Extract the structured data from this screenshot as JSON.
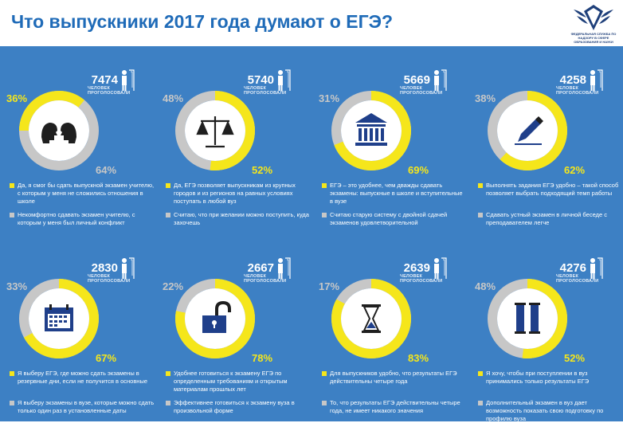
{
  "header": {
    "title": "Что выпускники 2017 года думают о ЕГЭ?",
    "logo_text": "ФЕДЕРАЛЬНАЯ СЛУЖБА ПО НАДЗОРУ В СФЕРЕ ОБРАЗОВАНИЯ И НАУКИ"
  },
  "colors": {
    "yellow": "#f5e61b",
    "grey": "#c7c7c7",
    "panel": "#3d80c4",
    "title": "#1f6bb8"
  },
  "cards": [
    {
      "count": "7474",
      "count_label_1": "ЧЕЛОВЕК",
      "count_label_2": "ПРОГОЛОСОВАЛИ",
      "yellow_pct_value": 36,
      "grey_pct_value": 64,
      "left_pct": "36%",
      "right_pct": "64%",
      "left_is_yellow": true,
      "icon": "two-heads-icon",
      "yes": "Да, я смог бы сдать выпускной экзамен учителю, с которым у меня не сложились отношения в школе",
      "no": "Некомфортно сдавать экзамен учителю, с которым у меня был личный конфликт"
    },
    {
      "count": "5740",
      "count_label_1": "ЧЕЛОВЕК",
      "count_label_2": "ПРОГОЛОСОВАЛИ",
      "yellow_pct_value": 52,
      "grey_pct_value": 48,
      "left_pct": "48%",
      "right_pct": "52%",
      "left_is_yellow": false,
      "icon": "scales-icon",
      "yes": "Да, ЕГЭ позволяет выпускникам из крупных городов и из регионов на равных условиях поступать в любой вуз",
      "no": "Считаю, что при желании можно поступить, куда захочешь"
    },
    {
      "count": "5669",
      "count_label_1": "ЧЕЛОВЕК",
      "count_label_2": "ПРОГОЛОСОВАЛИ",
      "yellow_pct_value": 69,
      "grey_pct_value": 31,
      "left_pct": "31%",
      "right_pct": "69%",
      "left_is_yellow": false,
      "icon": "university-icon",
      "yes": "ЕГЭ – это удобнее, чем дважды сдавать экзамены: выпускные в школе и вступительные в вузе",
      "no": "Считаю старую систему с двойной сдачей экзаменов удовлетворительной"
    },
    {
      "count": "4258",
      "count_label_1": "ЧЕЛОВЕК",
      "count_label_2": "ПРОГОЛОСОВАЛИ",
      "yellow_pct_value": 62,
      "grey_pct_value": 38,
      "left_pct": "38%",
      "right_pct": "62%",
      "left_is_yellow": false,
      "icon": "pen-icon",
      "yes": "Выполнять  задания ЕГЭ удобно – такой способ позволяет выбрать подходящий темп работы",
      "no": "Сдавать устный экзамен в личной беседе с преподавателем легче"
    },
    {
      "count": "2830",
      "count_label_1": "ЧЕЛОВЕК",
      "count_label_2": "ПРОГОЛОСОВАЛИ",
      "yellow_pct_value": 67,
      "grey_pct_value": 33,
      "left_pct": "33%",
      "right_pct": "67%",
      "left_is_yellow": false,
      "icon": "calendar-icon",
      "yes": "Я выберу ЕГЭ, где можно сдать экзамены в резервные дни, если не получится в основные",
      "no": "Я выберу экзамены в вузе, которые можно сдать только один раз в установленные даты"
    },
    {
      "count": "2667",
      "count_label_1": "ЧЕЛОВЕК",
      "count_label_2": "ПРОГОЛОСОВАЛИ",
      "yellow_pct_value": 78,
      "grey_pct_value": 22,
      "left_pct": "22%",
      "right_pct": "78%",
      "left_is_yellow": false,
      "icon": "padlock-icon",
      "yes": "Удобнее готовиться к экзамену ЕГЭ по определенным требованиям и открытым материалам прошлых лет",
      "no": "Эффективнее готовиться к экзамену вуза в произвольной форме"
    },
    {
      "count": "2639",
      "count_label_1": "ЧЕЛОВЕК",
      "count_label_2": "ПРОГОЛОСОВАЛИ",
      "yellow_pct_value": 83,
      "grey_pct_value": 17,
      "left_pct": "17%",
      "right_pct": "83%",
      "left_is_yellow": false,
      "icon": "hourglass-icon",
      "yes": "Для выпускников удобно, что результаты ЕГЭ действительны четыре года",
      "no": "То, что результаты ЕГЭ действительны четыре года, не имеет никакого значения"
    },
    {
      "count": "4276",
      "count_label_1": "ЧЕЛОВЕК",
      "count_label_2": "ПРОГОЛОСОВАЛИ",
      "yellow_pct_value": 52,
      "grey_pct_value": 48,
      "left_pct": "48%",
      "right_pct": "52%",
      "left_is_yellow": false,
      "icon": "columns-icon",
      "yes": "Я хочу, чтобы при поступлении в вуз принимались только результаты ЕГЭ",
      "no": "Дополнительный экзамен в вуз дает возможность показать свою подготовку по профилю вуза"
    }
  ]
}
